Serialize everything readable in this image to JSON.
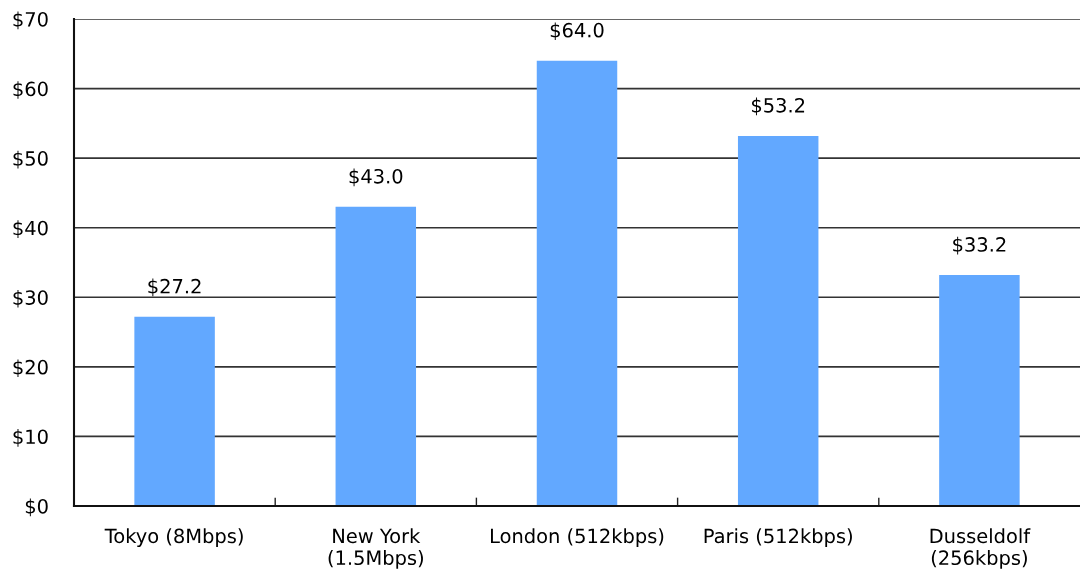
{
  "chart_data": {
    "type": "bar",
    "categories": [
      "Tokyo (8Mbps)",
      "New York\n(1.5Mbps)",
      "London (512kbps)",
      "Paris (512kbps)",
      "Dusseldolf\n(256kbps)"
    ],
    "values": [
      27.2,
      43.0,
      64.0,
      53.2,
      33.2
    ],
    "value_labels": [
      "$27.2",
      "$43.0",
      "$64.0",
      "$53.2",
      "$33.2"
    ],
    "color": "#62a8ff",
    "ylim": [
      0,
      70
    ],
    "yticks": [
      {
        "value": 0,
        "label": "$0"
      },
      {
        "value": 10,
        "label": "$10"
      },
      {
        "value": 20,
        "label": "$20"
      },
      {
        "value": 30,
        "label": "$30"
      },
      {
        "value": 40,
        "label": "$40"
      },
      {
        "value": 50,
        "label": "$50"
      },
      {
        "value": 60,
        "label": "$60"
      },
      {
        "value": 70,
        "label": "$70"
      }
    ],
    "grid": "y"
  }
}
